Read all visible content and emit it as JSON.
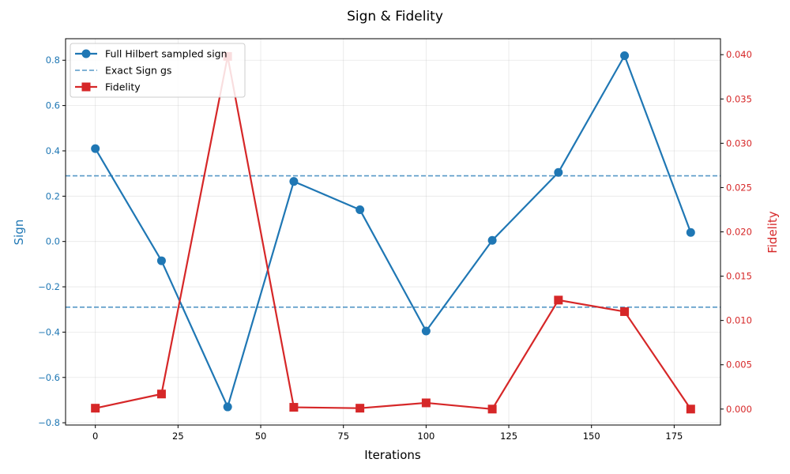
{
  "chart_data": {
    "type": "line",
    "title": "Sign & Fidelity",
    "xlabel": "Iterations",
    "ylabel": "Sign",
    "y2label": "Fidelity",
    "xlim": [
      -9,
      189
    ],
    "ylim": [
      -0.81,
      0.895
    ],
    "y2lim": [
      -0.0018,
      0.0418
    ],
    "xticks": [
      0,
      25,
      50,
      75,
      100,
      125,
      150,
      175
    ],
    "xtick_labels": [
      "0",
      "25",
      "50",
      "75",
      "100",
      "125",
      "150",
      "175"
    ],
    "yticks": [
      -0.8,
      -0.6,
      -0.4,
      -0.2,
      0.0,
      0.2,
      0.4,
      0.6,
      0.8
    ],
    "ytick_labels": [
      "−0.8",
      "−0.6",
      "−0.4",
      "−0.2",
      "0.0",
      "0.2",
      "0.4",
      "0.6",
      "0.8"
    ],
    "y2ticks": [
      0.0,
      0.005,
      0.01,
      0.015,
      0.02,
      0.025,
      0.03,
      0.035,
      0.04
    ],
    "y2tick_labels": [
      "0.000",
      "0.005",
      "0.010",
      "0.015",
      "0.020",
      "0.025",
      "0.030",
      "0.035",
      "0.040"
    ],
    "grid": true,
    "legend_position": "top-left",
    "x": [
      0,
      20,
      40,
      60,
      80,
      100,
      120,
      140,
      160,
      180
    ],
    "series": [
      {
        "name": "Full Hilbert sampled sign",
        "axis": "left",
        "color": "#1f77b4",
        "marker": "circle",
        "values": [
          0.41,
          -0.085,
          -0.73,
          0.265,
          0.14,
          -0.395,
          0.005,
          0.305,
          0.82,
          0.04
        ]
      },
      {
        "name": "Fidelity",
        "axis": "right",
        "color": "#d62728",
        "marker": "square",
        "values": [
          0.0001,
          0.0017,
          0.0398,
          0.0002,
          0.0001,
          0.0007,
          0.0,
          0.0123,
          0.011,
          0.0
        ]
      }
    ],
    "reference_lines": {
      "name": "Exact Sign gs",
      "axis": "left",
      "color": "#1f77b4",
      "values": [
        0.29,
        -0.29
      ]
    },
    "colors": {
      "sign_axis": "#1f77b4",
      "fidelity_axis": "#d62728"
    }
  }
}
